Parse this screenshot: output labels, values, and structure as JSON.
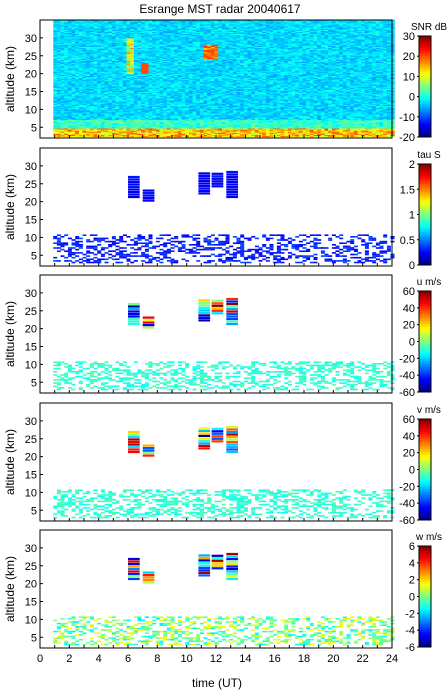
{
  "title": "Esrange MST radar 20040617",
  "xlabel": "time (UT)",
  "chart_data": [
    {
      "type": "heatmap",
      "ylabel": "altitude (km)",
      "colorbar_label": "SNR dB",
      "colorbar_range": [
        -20,
        30
      ],
      "colorbar_ticks": [
        "30",
        "20",
        "10",
        "0",
        "-10",
        "-20"
      ],
      "yticks": [
        "5",
        "10",
        "15",
        "20",
        "25",
        "30"
      ],
      "ylim": [
        2,
        35
      ],
      "xlim": [
        0,
        24
      ],
      "xticks": [],
      "colormap": "jet"
    },
    {
      "type": "heatmap",
      "ylabel": "altitude (km)",
      "colorbar_label": "tau S",
      "colorbar_range": [
        0,
        2
      ],
      "colorbar_ticks": [
        "2",
        "1.5",
        "1",
        "0.5",
        "0"
      ],
      "yticks": [
        "5",
        "10",
        "15",
        "20",
        "25",
        "30"
      ],
      "ylim": [
        2,
        35
      ],
      "xlim": [
        0,
        24
      ],
      "xticks": [],
      "colormap": "jet"
    },
    {
      "type": "heatmap",
      "ylabel": "altitude (km)",
      "colorbar_label": "u m/s",
      "colorbar_range": [
        -60,
        60
      ],
      "colorbar_ticks": [
        "60",
        "40",
        "20",
        "0",
        "-20",
        "-40",
        "-60"
      ],
      "yticks": [
        "5",
        "10",
        "15",
        "20",
        "25",
        "30"
      ],
      "ylim": [
        2,
        35
      ],
      "xlim": [
        0,
        24
      ],
      "xticks": [],
      "colormap": "jet"
    },
    {
      "type": "heatmap",
      "ylabel": "altitude (km)",
      "colorbar_label": "v m/s",
      "colorbar_range": [
        -60,
        60
      ],
      "colorbar_ticks": [
        "60",
        "40",
        "20",
        "0",
        "-20",
        "-40",
        "-60"
      ],
      "yticks": [
        "5",
        "10",
        "15",
        "20",
        "25",
        "30"
      ],
      "ylim": [
        2,
        35
      ],
      "xlim": [
        0,
        24
      ],
      "xticks": [],
      "colormap": "jet"
    },
    {
      "type": "heatmap",
      "ylabel": "altitude (km)",
      "colorbar_label": "w m/s",
      "colorbar_range": [
        -6,
        6
      ],
      "colorbar_ticks": [
        "6",
        "4",
        "2",
        "0",
        "-2",
        "-4",
        "-6"
      ],
      "yticks": [
        "5",
        "10",
        "15",
        "20",
        "25",
        "30"
      ],
      "ylim": [
        2,
        35
      ],
      "xlim": [
        0,
        24
      ],
      "xticks": [
        "0",
        "2",
        "4",
        "6",
        "8",
        "10",
        "12",
        "14",
        "16",
        "18",
        "20",
        "22",
        "24"
      ],
      "colormap": "jet"
    }
  ]
}
